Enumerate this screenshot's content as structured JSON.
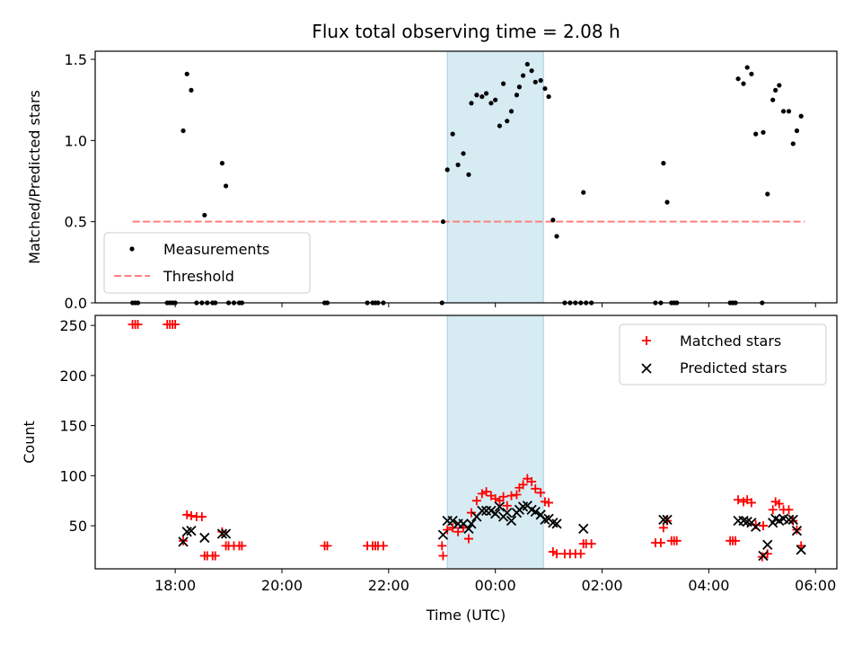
{
  "title": "Flux total observing time = 2.08 h",
  "chart_data": [
    {
      "type": "scatter",
      "name": "matched-ratio",
      "ylabel": "Matched/Predicted stars",
      "xlim_hours": [
        16.5,
        6.4
      ],
      "ylim": [
        0,
        1.55
      ],
      "yticks": [
        0,
        0.5,
        1,
        1.5
      ],
      "ytick_labels": [
        "0.0",
        "0.5",
        "1.0",
        "1.5"
      ],
      "highlight_span_hours": [
        23.1,
        0.9
      ],
      "threshold": {
        "label": "Threshold",
        "value": 0.5,
        "x_range_hours": [
          17.2,
          5.8
        ],
        "color": "#ff7f7f"
      },
      "legend": [
        {
          "label": "Measurements",
          "marker": "dot"
        },
        {
          "label": "Threshold",
          "marker": "dashed"
        }
      ],
      "series": [
        {
          "name": "Measurements",
          "color": "#000000",
          "points": [
            [
              17.2,
              0
            ],
            [
              17.25,
              0
            ],
            [
              17.3,
              0
            ],
            [
              17.85,
              0
            ],
            [
              17.9,
              0
            ],
            [
              17.95,
              0
            ],
            [
              18.0,
              0
            ],
            [
              18.15,
              1.06
            ],
            [
              18.22,
              1.41
            ],
            [
              18.3,
              1.31
            ],
            [
              18.4,
              0
            ],
            [
              18.5,
              0
            ],
            [
              18.55,
              0.54
            ],
            [
              18.6,
              0
            ],
            [
              18.7,
              0
            ],
            [
              18.75,
              0
            ],
            [
              18.88,
              0.86
            ],
            [
              18.95,
              0.72
            ],
            [
              19.0,
              0
            ],
            [
              19.1,
              0
            ],
            [
              19.2,
              0
            ],
            [
              19.25,
              0
            ],
            [
              20.8,
              0
            ],
            [
              20.85,
              0
            ],
            [
              21.6,
              0
            ],
            [
              21.7,
              0
            ],
            [
              21.75,
              0
            ],
            [
              21.8,
              0
            ],
            [
              21.9,
              0
            ],
            [
              23.0,
              0
            ],
            [
              23.02,
              0.5
            ],
            [
              23.1,
              0.82
            ],
            [
              23.2,
              1.04
            ],
            [
              23.3,
              0.85
            ],
            [
              23.4,
              0.92
            ],
            [
              23.5,
              0.79
            ],
            [
              23.55,
              1.23
            ],
            [
              23.65,
              1.28
            ],
            [
              23.75,
              1.27
            ],
            [
              23.83,
              1.29
            ],
            [
              23.92,
              1.23
            ],
            [
              24.0,
              1.25
            ],
            [
              24.08,
              1.09
            ],
            [
              24.15,
              1.35
            ],
            [
              24.22,
              1.12
            ],
            [
              24.3,
              1.18
            ],
            [
              24.4,
              1.28
            ],
            [
              24.45,
              1.33
            ],
            [
              24.52,
              1.4
            ],
            [
              24.6,
              1.47
            ],
            [
              24.68,
              1.43
            ],
            [
              24.75,
              1.36
            ],
            [
              24.85,
              1.37
            ],
            [
              24.93,
              1.32
            ],
            [
              25.0,
              1.27
            ],
            [
              25.08,
              0.51
            ],
            [
              25.15,
              0.41
            ],
            [
              25.3,
              0
            ],
            [
              25.4,
              0
            ],
            [
              25.5,
              0
            ],
            [
              25.6,
              0
            ],
            [
              25.65,
              0.68
            ],
            [
              25.7,
              0
            ],
            [
              25.8,
              0
            ],
            [
              27.0,
              0
            ],
            [
              27.1,
              0
            ],
            [
              27.15,
              0.86
            ],
            [
              27.22,
              0.62
            ],
            [
              27.3,
              0
            ],
            [
              27.35,
              0
            ],
            [
              27.4,
              0
            ],
            [
              28.4,
              0
            ],
            [
              28.45,
              0
            ],
            [
              28.5,
              0
            ],
            [
              28.55,
              1.38
            ],
            [
              28.65,
              1.35
            ],
            [
              28.72,
              1.45
            ],
            [
              28.8,
              1.41
            ],
            [
              28.88,
              1.04
            ],
            [
              29.0,
              0
            ],
            [
              29.02,
              1.05
            ],
            [
              29.1,
              0.67
            ],
            [
              29.2,
              1.25
            ],
            [
              29.25,
              1.31
            ],
            [
              29.32,
              1.34
            ],
            [
              29.4,
              1.18
            ],
            [
              29.5,
              1.18
            ],
            [
              29.58,
              0.98
            ],
            [
              29.65,
              1.06
            ],
            [
              29.73,
              1.15
            ]
          ]
        }
      ]
    },
    {
      "type": "scatter",
      "name": "star-counts",
      "xlabel": "Time (UTC)",
      "ylabel": "Count",
      "xlim_hours": [
        16.5,
        6.4
      ],
      "ylim": [
        7,
        260
      ],
      "yticks": [
        50,
        100,
        150,
        200,
        250
      ],
      "ytick_labels": [
        "50",
        "100",
        "150",
        "200",
        "250"
      ],
      "xticks_hours": [
        18,
        20,
        22,
        0,
        2,
        4,
        6
      ],
      "xtick_labels": [
        "18:00",
        "20:00",
        "22:00",
        "00:00",
        "02:00",
        "04:00",
        "06:00"
      ],
      "highlight_span_hours": [
        23.1,
        0.9
      ],
      "legend": [
        {
          "label": "Matched stars",
          "marker": "plus",
          "color": "#ff0000"
        },
        {
          "label": "Predicted stars",
          "marker": "x",
          "color": "#000000"
        }
      ],
      "series": [
        {
          "name": "Matched stars",
          "color": "#ff0000",
          "points": [
            [
              17.2,
              251
            ],
            [
              17.25,
              251
            ],
            [
              17.3,
              251
            ],
            [
              17.85,
              251
            ],
            [
              17.9,
              251
            ],
            [
              17.95,
              251
            ],
            [
              18.0,
              251
            ],
            [
              18.15,
              35
            ],
            [
              18.22,
              61
            ],
            [
              18.3,
              60
            ],
            [
              18.4,
              59
            ],
            [
              18.5,
              59
            ],
            [
              18.55,
              20
            ],
            [
              18.6,
              20
            ],
            [
              18.7,
              20
            ],
            [
              18.75,
              20
            ],
            [
              18.88,
              44
            ],
            [
              18.95,
              30
            ],
            [
              19.0,
              30
            ],
            [
              19.1,
              30
            ],
            [
              19.2,
              30
            ],
            [
              19.25,
              30
            ],
            [
              20.8,
              30
            ],
            [
              20.85,
              30
            ],
            [
              21.6,
              30
            ],
            [
              21.7,
              30
            ],
            [
              21.75,
              30
            ],
            [
              21.8,
              30
            ],
            [
              21.9,
              30
            ],
            [
              23.0,
              30
            ],
            [
              23.02,
              20
            ],
            [
              23.1,
              46
            ],
            [
              23.2,
              48
            ],
            [
              23.3,
              44
            ],
            [
              23.4,
              48
            ],
            [
              23.5,
              37
            ],
            [
              23.55,
              63
            ],
            [
              23.65,
              75
            ],
            [
              23.75,
              82
            ],
            [
              23.83,
              84
            ],
            [
              23.92,
              80
            ],
            [
              24.0,
              77
            ],
            [
              24.08,
              75
            ],
            [
              24.15,
              79
            ],
            [
              24.22,
              70
            ],
            [
              24.3,
              80
            ],
            [
              24.4,
              81
            ],
            [
              24.45,
              88
            ],
            [
              24.52,
              91
            ],
            [
              24.6,
              97
            ],
            [
              24.68,
              94
            ],
            [
              24.75,
              87
            ],
            [
              24.85,
              83
            ],
            [
              24.93,
              74
            ],
            [
              25.0,
              73
            ],
            [
              25.08,
              24
            ],
            [
              25.15,
              22
            ],
            [
              25.3,
              22
            ],
            [
              25.4,
              22
            ],
            [
              25.5,
              22
            ],
            [
              25.6,
              22
            ],
            [
              25.65,
              32
            ],
            [
              25.7,
              32
            ],
            [
              25.8,
              32
            ],
            [
              27.0,
              33
            ],
            [
              27.1,
              33
            ],
            [
              27.15,
              48
            ],
            [
              27.22,
              55
            ],
            [
              27.3,
              35
            ],
            [
              27.35,
              35
            ],
            [
              27.4,
              35
            ],
            [
              28.4,
              35
            ],
            [
              28.45,
              35
            ],
            [
              28.5,
              35
            ],
            [
              28.55,
              76
            ],
            [
              28.65,
              74
            ],
            [
              28.72,
              76
            ],
            [
              28.8,
              73
            ],
            [
              28.88,
              51
            ],
            [
              29.0,
              19
            ],
            [
              29.02,
              50
            ],
            [
              29.1,
              22
            ],
            [
              29.2,
              66
            ],
            [
              29.25,
              74
            ],
            [
              29.32,
              72
            ],
            [
              29.4,
              66
            ],
            [
              29.5,
              66
            ],
            [
              29.58,
              55
            ],
            [
              29.65,
              46
            ],
            [
              29.73,
              30
            ]
          ]
        },
        {
          "name": "Predicted stars",
          "color": "#000000",
          "points": [
            [
              18.15,
              34
            ],
            [
              18.22,
              44
            ],
            [
              18.3,
              45
            ],
            [
              18.55,
              38
            ],
            [
              18.88,
              42
            ],
            [
              18.95,
              42
            ],
            [
              23.02,
              41
            ],
            [
              23.1,
              55
            ],
            [
              23.2,
              55
            ],
            [
              23.3,
              52
            ],
            [
              23.4,
              52
            ],
            [
              23.5,
              47
            ],
            [
              23.55,
              52
            ],
            [
              23.65,
              59
            ],
            [
              23.75,
              65
            ],
            [
              23.83,
              65
            ],
            [
              23.92,
              65
            ],
            [
              24.0,
              62
            ],
            [
              24.08,
              69
            ],
            [
              24.15,
              59
            ],
            [
              24.22,
              63
            ],
            [
              24.3,
              55
            ],
            [
              24.4,
              63
            ],
            [
              24.45,
              66
            ],
            [
              24.52,
              69
            ],
            [
              24.6,
              70
            ],
            [
              24.68,
              66
            ],
            [
              24.75,
              64
            ],
            [
              24.85,
              61
            ],
            [
              24.93,
              56
            ],
            [
              25.0,
              57
            ],
            [
              25.08,
              53
            ],
            [
              25.15,
              52
            ],
            [
              25.65,
              47
            ],
            [
              27.15,
              56
            ],
            [
              27.22,
              56
            ],
            [
              28.55,
              55
            ],
            [
              28.65,
              55
            ],
            [
              28.72,
              54
            ],
            [
              28.8,
              53
            ],
            [
              28.88,
              49
            ],
            [
              29.02,
              20
            ],
            [
              29.1,
              31
            ],
            [
              29.2,
              53
            ],
            [
              29.25,
              57
            ],
            [
              29.32,
              55
            ],
            [
              29.4,
              57
            ],
            [
              29.5,
              56
            ],
            [
              29.58,
              56
            ],
            [
              29.65,
              45
            ],
            [
              29.73,
              26
            ]
          ]
        }
      ]
    }
  ]
}
